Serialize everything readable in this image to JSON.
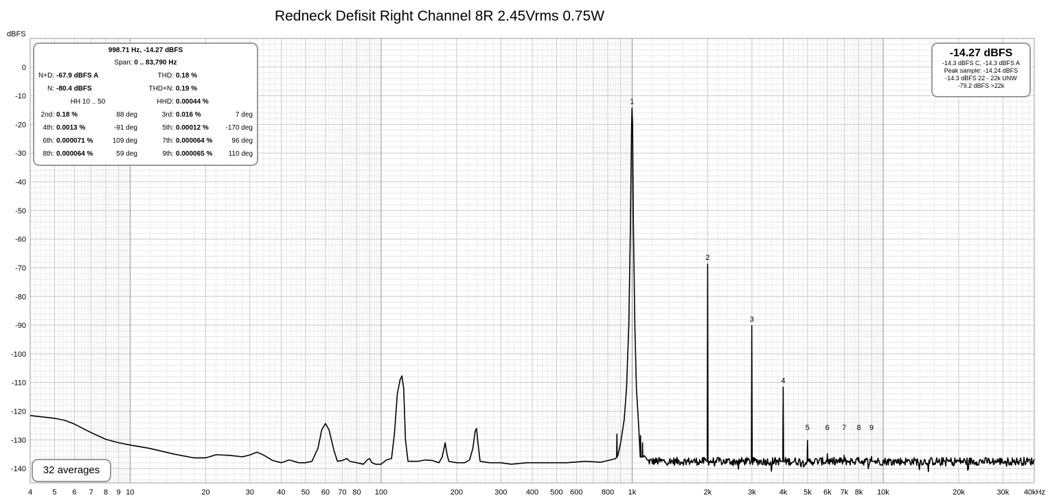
{
  "chart_data": {
    "type": "line",
    "title": "Redneck Defisit Right Channel 8R 2.45Vrms 0.75W",
    "ylabel": "dBFS",
    "xlabel": "",
    "x_scale": "log",
    "xlim": [
      4,
      40000
    ],
    "ylim": [
      -145,
      10
    ],
    "grid": true,
    "line_color": "#000000",
    "y_ticks": [
      "0",
      "-10",
      "-20",
      "-30",
      "-40",
      "-50",
      "-60",
      "-70",
      "-80",
      "-90",
      "-100",
      "-110",
      "-120",
      "-130",
      "-140"
    ],
    "x_ticks": [
      {
        "v": 4,
        "t": "4"
      },
      {
        "v": 5,
        "t": "5"
      },
      {
        "v": 6,
        "t": "6"
      },
      {
        "v": 7,
        "t": "7"
      },
      {
        "v": 8,
        "t": "8"
      },
      {
        "v": 9,
        "t": "9"
      },
      {
        "v": 10,
        "t": "10"
      },
      {
        "v": 20,
        "t": "20"
      },
      {
        "v": 30,
        "t": "30"
      },
      {
        "v": 40,
        "t": "40"
      },
      {
        "v": 50,
        "t": "50"
      },
      {
        "v": 60,
        "t": "60"
      },
      {
        "v": 70,
        "t": "70"
      },
      {
        "v": 80,
        "t": "80"
      },
      {
        "v": 100,
        "t": "100"
      },
      {
        "v": 200,
        "t": "200"
      },
      {
        "v": 300,
        "t": "300"
      },
      {
        "v": 400,
        "t": "400"
      },
      {
        "v": 500,
        "t": "500"
      },
      {
        "v": 600,
        "t": "600"
      },
      {
        "v": 800,
        "t": "800"
      },
      {
        "v": 1000,
        "t": "1k"
      },
      {
        "v": 2000,
        "t": "2k"
      },
      {
        "v": 3000,
        "t": "3k"
      },
      {
        "v": 4000,
        "t": "4k"
      },
      {
        "v": 5000,
        "t": "5k"
      },
      {
        "v": 6000,
        "t": "6k"
      },
      {
        "v": 7000,
        "t": "7k"
      },
      {
        "v": 8000,
        "t": "8k"
      },
      {
        "v": 10000,
        "t": "10k"
      },
      {
        "v": 20000,
        "t": "20k"
      },
      {
        "v": 30000,
        "t": "30k"
      },
      {
        "v": 40000,
        "t": "40kHz"
      }
    ],
    "trace": [
      [
        4,
        -121.5
      ],
      [
        5,
        -122.5
      ],
      [
        5.5,
        -123.2
      ],
      [
        6,
        -124.5
      ],
      [
        7,
        -127.5
      ],
      [
        8,
        -129.8
      ],
      [
        9,
        -131
      ],
      [
        10,
        -131.8
      ],
      [
        12,
        -133
      ],
      [
        15,
        -135
      ],
      [
        18,
        -136.3
      ],
      [
        20,
        -136.3
      ],
      [
        22,
        -135.2
      ],
      [
        25,
        -135.4
      ],
      [
        28,
        -135.9
      ],
      [
        30,
        -135.3
      ],
      [
        32,
        -134.3
      ],
      [
        34,
        -135.3
      ],
      [
        37,
        -137.2
      ],
      [
        40,
        -138
      ],
      [
        43,
        -137
      ],
      [
        47,
        -138
      ],
      [
        50,
        -138
      ],
      [
        53,
        -137.5
      ],
      [
        56,
        -133
      ],
      [
        58,
        -126.5
      ],
      [
        60,
        -124.3
      ],
      [
        62,
        -126.5
      ],
      [
        65,
        -134
      ],
      [
        67,
        -137.5
      ],
      [
        70,
        -137.2
      ],
      [
        73,
        -136.5
      ],
      [
        75,
        -137.5
      ],
      [
        80,
        -138
      ],
      [
        85,
        -138.5
      ],
      [
        88,
        -137
      ],
      [
        90,
        -136.5
      ],
      [
        92,
        -138
      ],
      [
        95,
        -138.5
      ],
      [
        100,
        -138.5
      ],
      [
        105,
        -137
      ],
      [
        110,
        -136.5
      ],
      [
        113,
        -128
      ],
      [
        116,
        -114
      ],
      [
        119,
        -109
      ],
      [
        121,
        -107.7
      ],
      [
        123,
        -112
      ],
      [
        125,
        -130
      ],
      [
        128,
        -137.5
      ],
      [
        140,
        -137.5
      ],
      [
        150,
        -137
      ],
      [
        160,
        -137.2
      ],
      [
        170,
        -138
      ],
      [
        175,
        -136
      ],
      [
        178,
        -133
      ],
      [
        180,
        -131
      ],
      [
        183,
        -135
      ],
      [
        186,
        -137.5
      ],
      [
        200,
        -138
      ],
      [
        215,
        -138
      ],
      [
        225,
        -137
      ],
      [
        232,
        -133
      ],
      [
        237,
        -127
      ],
      [
        240,
        -126
      ],
      [
        243,
        -131
      ],
      [
        248,
        -137.5
      ],
      [
        270,
        -138
      ],
      [
        300,
        -138
      ],
      [
        330,
        -138.5
      ],
      [
        380,
        -138
      ],
      [
        450,
        -138
      ],
      [
        550,
        -138
      ],
      [
        650,
        -137.5
      ],
      [
        750,
        -137.8
      ],
      [
        820,
        -137
      ],
      [
        860,
        -136.5
      ],
      [
        880,
        -135
      ],
      [
        900,
        -131
      ],
      [
        930,
        -123
      ],
      [
        950,
        -112
      ],
      [
        970,
        -90
      ],
      [
        985,
        -55
      ],
      [
        995,
        -20
      ],
      [
        999,
        -14.3
      ],
      [
        1004,
        -20
      ],
      [
        1012,
        -55
      ],
      [
        1025,
        -90
      ],
      [
        1040,
        -112
      ],
      [
        1060,
        -124
      ],
      [
        1080,
        -131
      ],
      [
        1120,
        -135.5
      ],
      [
        1200,
        -137.5
      ],
      [
        1500,
        -138
      ],
      [
        1900,
        -138
      ]
    ],
    "noise": {
      "from": 1150,
      "to": 40000,
      "mean": -137.5,
      "spread": 1.4,
      "points": 600
    },
    "spikes": [
      {
        "f": 1999,
        "db": -68.7,
        "n": "2"
      },
      {
        "f": 2998,
        "db": -90.2,
        "n": "3"
      },
      {
        "f": 3997,
        "db": -111.6,
        "n": "4"
      },
      {
        "f": 4996,
        "db": -130.2,
        "n": "5"
      },
      {
        "f": 5995,
        "db": -134.8,
        "n": "6"
      },
      {
        "f": 6994,
        "db": -135.4,
        "n": "7"
      },
      {
        "f": 7993,
        "db": -136.1,
        "n": "8"
      },
      {
        "f": 8992,
        "db": -135.8,
        "n": "9"
      }
    ],
    "fundamental": {
      "f": 999,
      "db": -14.27,
      "n": "1"
    },
    "side_spikes": [
      {
        "f": 870,
        "db": -128
      },
      {
        "f": 1100,
        "db": -131
      },
      {
        "f": 1080,
        "db": -128.5
      }
    ],
    "legend": "none",
    "annotations": {
      "stats": {
        "cursor": "998.71 Hz, -14.27 dBFS",
        "span_label": "Span:",
        "span_value": "0 .. 83,790 Hz",
        "nd_label": "N+D:",
        "nd_value": "-67.9 dBFS A",
        "thd_label": "THD:",
        "thd_value": "0.18 %",
        "n_label": "N:",
        "n_value": "-80.4 dBFS",
        "thdn_label": "THD+N:",
        "thdn_value": "0.19 %",
        "hh_label": "HH 10 .. 50",
        "hhd_label": "HHD:",
        "hhd_value": "0.00044 %",
        "harmonics": [
          {
            "a_label": "2nd:",
            "a_value": "0.18 %",
            "a_deg": "88 deg",
            "b_label": "3rd:",
            "b_value": "0.016 %",
            "b_deg": "7 deg"
          },
          {
            "a_label": "4th:",
            "a_value": "0.0013 %",
            "a_deg": "-91 deg",
            "b_label": "5th:",
            "b_value": "0.00012 %",
            "b_deg": "-170 deg"
          },
          {
            "a_label": "6th:",
            "a_value": "0.000071 %",
            "a_deg": "109 deg",
            "b_label": "7th:",
            "b_value": "0.000064 %",
            "b_deg": "96 deg"
          },
          {
            "a_label": "8th:",
            "a_value": "0.000064 %",
            "a_deg": "59 deg",
            "b_label": "9th:",
            "b_value": "0.000065 %",
            "b_deg": "110 deg"
          }
        ]
      },
      "level": {
        "main": "-14.27 dBFS",
        "line1": "-14.3 dBFS C, -14.3 dBFS A",
        "line2": "Peak sample: -14.24 dBFS",
        "line3": "-14.3 dBFS 22 - 22k UNW",
        "line4": "-79.2 dBFS >22k"
      },
      "averages": "32 averages"
    }
  }
}
